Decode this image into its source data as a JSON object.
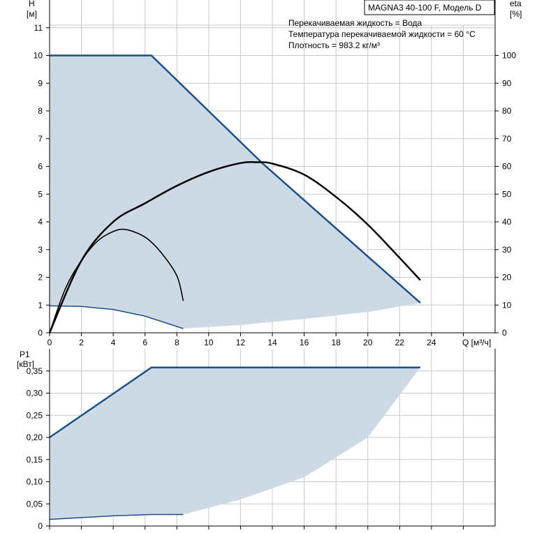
{
  "colors": {
    "envelope_fill": "#cdd9e5",
    "envelope_stroke": "#1d4f87",
    "curve": "#000000",
    "grid": "#c8c8c8",
    "frame": "#000000"
  },
  "info": {
    "model": "MAGNA3 40-100 F, Модель D",
    "lines": [
      "Перекачиваемая жидкость = Вода",
      "Температура перекачиваемой жидкости = 60 °C",
      "Плотность = 983.2 кг/м³"
    ]
  },
  "chart_data": [
    {
      "type": "line",
      "name": "head_efficiency",
      "ylabel": "H",
      "yunit": "[м]",
      "y2label": "eta",
      "y2unit": "[%]",
      "xlabel": "Q [м³/ч]",
      "xlim": [
        0,
        28
      ],
      "ylim": [
        0,
        12
      ],
      "y2lim": [
        0,
        120
      ],
      "xticks": [
        "0",
        "2",
        "4",
        "6",
        "8",
        "10",
        "12",
        "14",
        "16",
        "18",
        "20",
        "22",
        "24"
      ],
      "yticks": [
        "0",
        "1",
        "2",
        "3",
        "4",
        "5",
        "6",
        "7",
        "8",
        "9",
        "10",
        "11"
      ],
      "y2ticks": [
        "0",
        "10",
        "20",
        "30",
        "40",
        "50",
        "60",
        "70",
        "80",
        "90",
        "100"
      ],
      "envelope": {
        "max_curve": [
          [
            0,
            10
          ],
          [
            6.4,
            10
          ],
          [
            13.4,
            6.1
          ],
          [
            23.3,
            1.08
          ]
        ],
        "min_curve": [
          [
            0,
            0.97
          ],
          [
            2,
            0.95
          ],
          [
            4,
            0.84
          ],
          [
            6,
            0.6
          ],
          [
            8.4,
            0.15
          ]
        ],
        "bottom_curve": [
          [
            8.4,
            0.15
          ],
          [
            12,
            0.28
          ],
          [
            16,
            0.5
          ],
          [
            20,
            0.75
          ],
          [
            23.3,
            1.08
          ]
        ]
      },
      "efficiency_max": [
        [
          0,
          0
        ],
        [
          2,
          2.6
        ],
        [
          4,
          4.0
        ],
        [
          6,
          4.67
        ],
        [
          8,
          5.3
        ],
        [
          10,
          5.8
        ],
        [
          12,
          6.12
        ],
        [
          13,
          6.15
        ],
        [
          14,
          6.1
        ],
        [
          16,
          5.7
        ],
        [
          18,
          4.9
        ],
        [
          20,
          3.9
        ],
        [
          22,
          2.7
        ],
        [
          23.3,
          1.9
        ]
      ],
      "efficiency_min": [
        [
          0,
          0
        ],
        [
          1,
          1.6
        ],
        [
          2,
          2.6
        ],
        [
          3,
          3.3
        ],
        [
          4,
          3.65
        ],
        [
          4.8,
          3.72
        ],
        [
          6,
          3.45
        ],
        [
          7,
          2.9
        ],
        [
          8,
          2.05
        ],
        [
          8.4,
          1.15
        ]
      ]
    },
    {
      "type": "line",
      "name": "power",
      "ylabel": "P1",
      "yunit": "[кВт]",
      "xlim": [
        0,
        28
      ],
      "ylim": [
        0,
        0.4
      ],
      "yticks": [
        "0",
        "0,05",
        "0,10",
        "0,15",
        "0,20",
        "0,25",
        "0,30",
        "0,35"
      ],
      "envelope": {
        "max_curve": [
          [
            0,
            0.2
          ],
          [
            6.4,
            0.358
          ],
          [
            23.3,
            0.358
          ]
        ],
        "min_curve": [
          [
            0,
            0.015
          ],
          [
            4,
            0.023
          ],
          [
            6.4,
            0.026
          ],
          [
            8.4,
            0.026
          ]
        ],
        "bottom_curve": [
          [
            8.4,
            0.026
          ],
          [
            12,
            0.06
          ],
          [
            16,
            0.11
          ],
          [
            20,
            0.2
          ],
          [
            23.3,
            0.358
          ]
        ]
      }
    }
  ]
}
